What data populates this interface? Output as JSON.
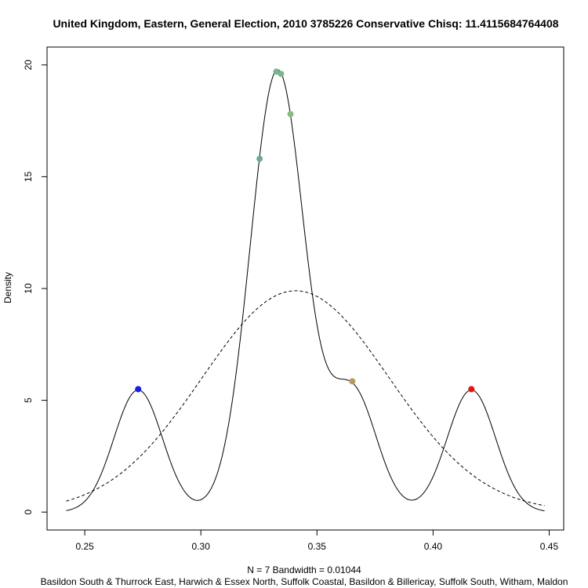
{
  "chart_data": {
    "type": "line",
    "title": "United Kingdom, Eastern, General Election, 2010 3785226 Conservative Chisq: 11.4115684764408",
    "xlabel": "N = 7   Bandwidth = 0.01044",
    "subtitle": "Basildon South & Thurrock East, Harwich & Essex North, Suffolk Coastal, Basildon & Billericay, Suffolk South, Witham, Maldon",
    "ylabel": "Density",
    "xlim": [
      0.242,
      0.448
    ],
    "ylim": [
      0,
      20
    ],
    "x_ticks": [
      0.25,
      0.3,
      0.35,
      0.4,
      0.45
    ],
    "x_tick_labels": [
      "0.25",
      "0.30",
      "0.35",
      "0.40",
      "0.45"
    ],
    "y_ticks": [
      0,
      5,
      10,
      15,
      20
    ],
    "y_tick_labels": [
      "0",
      "5",
      "10",
      "15",
      "20"
    ],
    "grid": false,
    "kde": {
      "bandwidth": 0.01044,
      "observations": [
        0.273,
        0.3253,
        0.3325,
        0.3345,
        0.3386,
        0.3652,
        0.4165
      ]
    },
    "normal_reference": {
      "mean": 0.3408,
      "sd": 0.0403,
      "style": "dashed"
    },
    "points": [
      {
        "x": 0.273,
        "y": 5.5,
        "color": "#1a1aee"
      },
      {
        "x": 0.3253,
        "y": 15.8,
        "color": "#6fa89a"
      },
      {
        "x": 0.3325,
        "y": 19.7,
        "color": "#7db58e"
      },
      {
        "x": 0.3345,
        "y": 19.6,
        "color": "#7db58e"
      },
      {
        "x": 0.3386,
        "y": 17.8,
        "color": "#8db87e"
      },
      {
        "x": 0.3652,
        "y": 5.85,
        "color": "#b59a5e"
      },
      {
        "x": 0.4165,
        "y": 5.5,
        "color": "#ee1111"
      }
    ]
  }
}
